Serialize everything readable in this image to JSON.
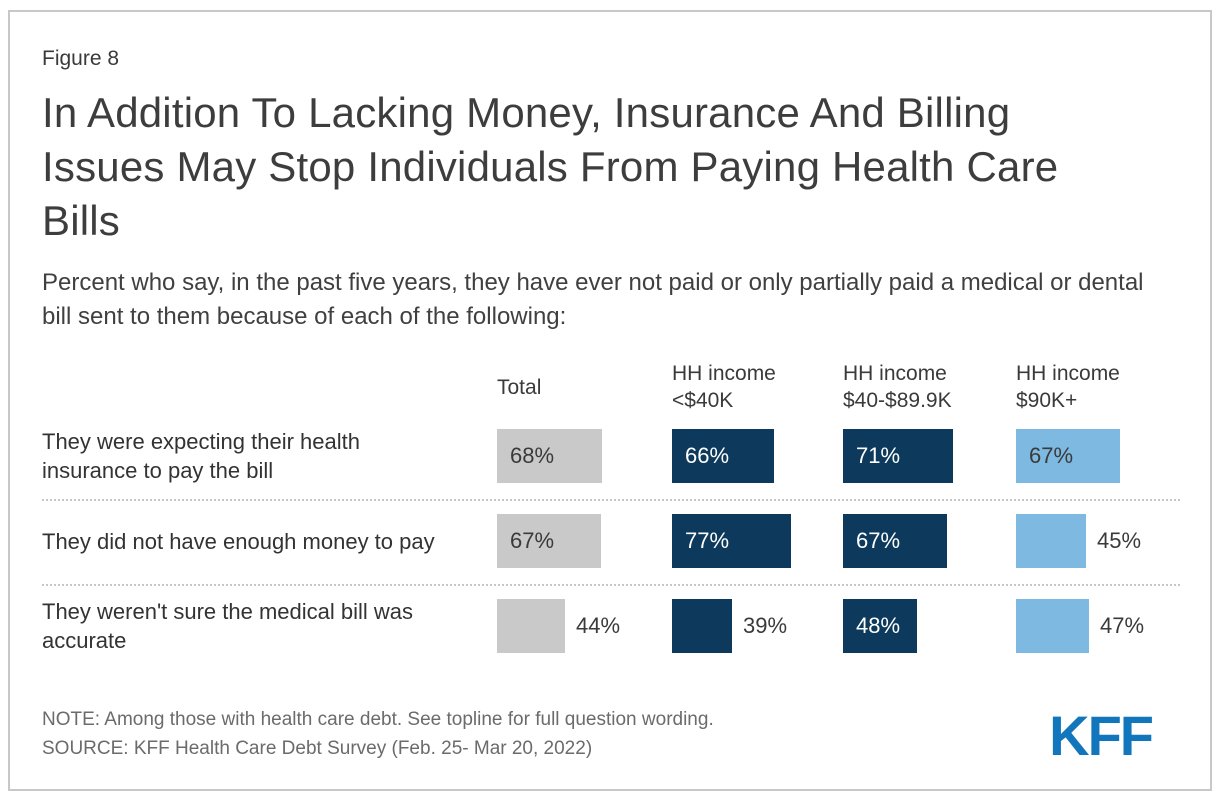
{
  "figure_label": "Figure 8",
  "footer": {
    "note": "NOTE: Among those with health care debt. See topline for full question wording.",
    "source": "SOURCE: KFF Health Care Debt Survey (Feb. 25- Mar 20, 2022)",
    "logo_text": "KFF"
  },
  "colors": {
    "gray_bar": "#c9c9c9",
    "navy_bar": "#0d3a5c",
    "light_blue_bar": "#7db9e0",
    "logo_blue": "#1276bd",
    "title_text": "#3d3d3d",
    "body_text": "#3a3a3a",
    "muted_text": "#6b6b6b",
    "separator": "#c6c6c6",
    "card_border": "#c8c8c8",
    "bar_label_light": "#ffffff",
    "bar_label_dark": "#3a3a3a"
  },
  "chart_data": {
    "type": "bar",
    "orientation": "horizontal",
    "unit": "percent",
    "title": "In Addition To Lacking Money, Insurance And Billing Issues May Stop Individuals From Paying Health Care Bills",
    "subtitle": "Percent who say, in the past five years, they have ever not paid or only partially paid a medical or dental bill sent to them because of each of the following:",
    "value_range": [
      0,
      100
    ],
    "legend": "none",
    "gridlines": "none",
    "categories": [
      "They were expecting their health insurance to pay the bill",
      "They did not have enough money to pay",
      "They weren't sure the medical bill was accurate"
    ],
    "series": [
      {
        "name": "Total",
        "header_lines": [
          "Total"
        ],
        "color_key": "gray_bar",
        "text_on_bar": "dark",
        "values": [
          68,
          67,
          44
        ],
        "labels": [
          "68%",
          "67%",
          "44%"
        ],
        "label_inside": [
          true,
          true,
          false
        ]
      },
      {
        "name": "HH income <$40K",
        "header_lines": [
          "HH income",
          "<$40K"
        ],
        "color_key": "navy_bar",
        "text_on_bar": "light",
        "values": [
          66,
          77,
          39
        ],
        "labels": [
          "66%",
          "77%",
          "39%"
        ],
        "label_inside": [
          true,
          true,
          false
        ]
      },
      {
        "name": "HH income $40-$89.9K",
        "header_lines": [
          "HH income",
          "$40-$89.9K"
        ],
        "color_key": "navy_bar",
        "text_on_bar": "light",
        "values": [
          71,
          67,
          48
        ],
        "labels": [
          "71%",
          "67%",
          "48%"
        ],
        "label_inside": [
          true,
          true,
          true
        ]
      },
      {
        "name": "HH income $90K+",
        "header_lines": [
          "HH income",
          "$90K+"
        ],
        "color_key": "light_blue_bar",
        "text_on_bar": "dark",
        "values": [
          67,
          45,
          47
        ],
        "labels": [
          "67%",
          "45%",
          "47%"
        ],
        "label_inside": [
          true,
          false,
          false
        ]
      }
    ]
  }
}
